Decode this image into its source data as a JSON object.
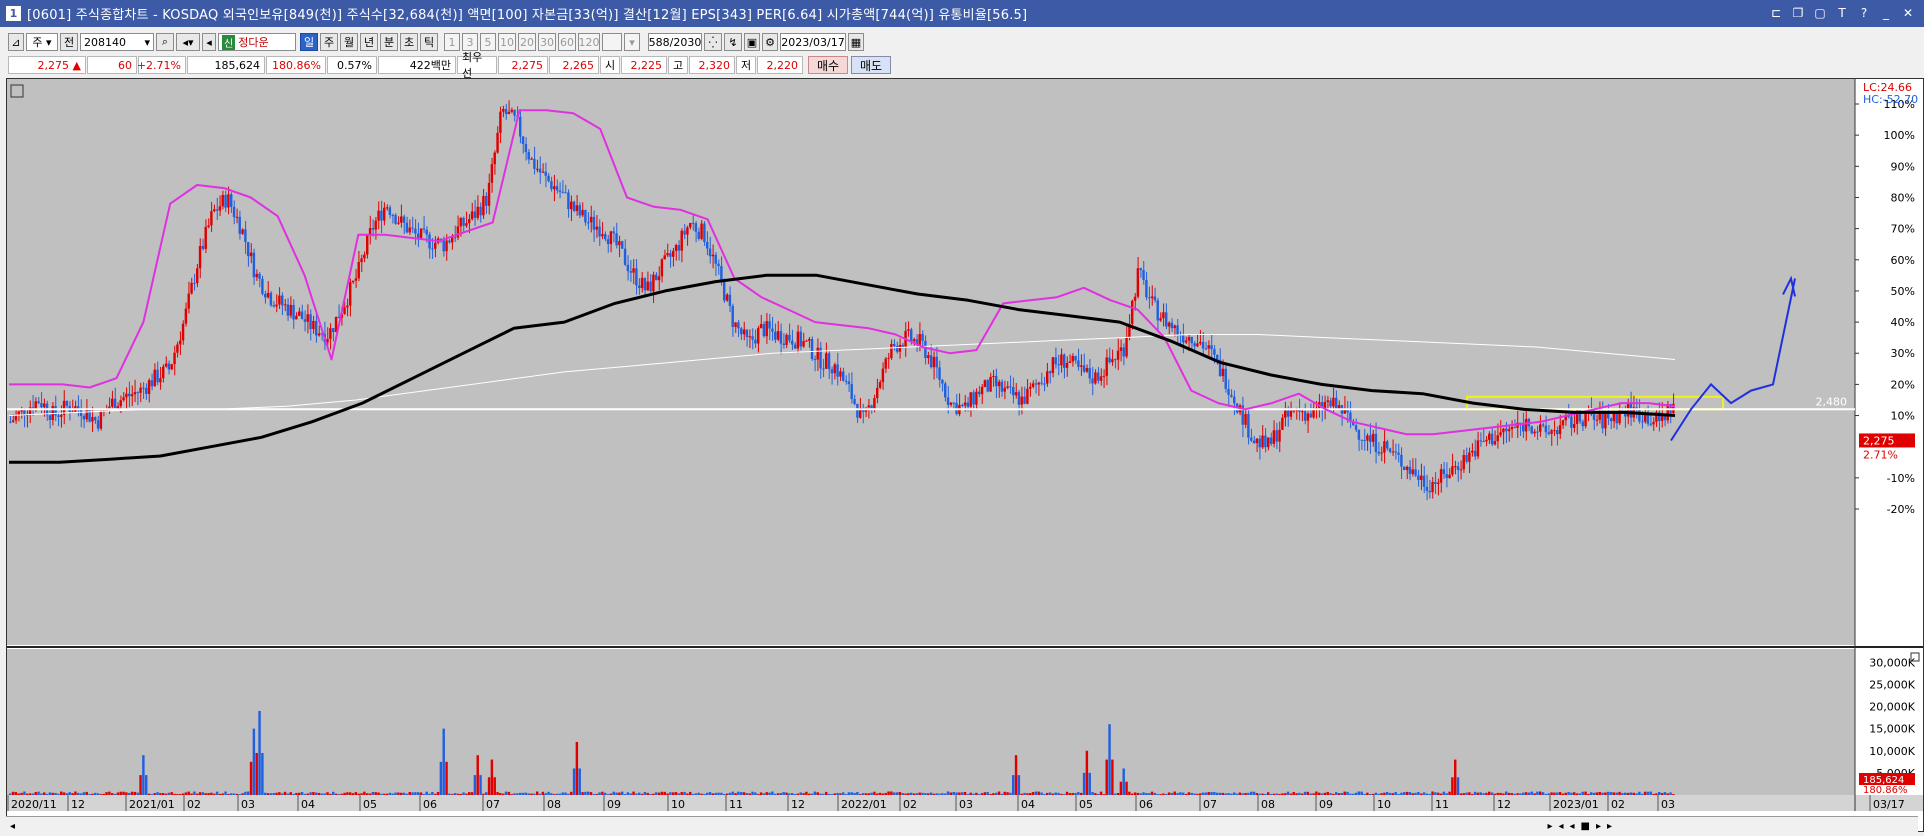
{
  "window": {
    "title": "[0601] 주식종합차트 - KOSDAQ 외국인보유[849(천)] 주식수[32,684(천)] 액면[100] 자본금[33(억)] 결산[12월] EPS[343] PER[6.64] 시가총액[744(억)] 유통비율[56.5]",
    "app_icon": "1"
  },
  "toolbar": {
    "market_label": "주",
    "period_label": "전",
    "code": "208140",
    "name_badge": "신",
    "name": "정다운",
    "periods": [
      "일",
      "주",
      "월",
      "년",
      "분",
      "초",
      "틱"
    ],
    "intervals": [
      "1",
      "3",
      "5",
      "10",
      "20",
      "30",
      "60",
      "120"
    ],
    "count": "588",
    "total": "/2030",
    "date": "2023/03/17"
  },
  "quote": {
    "price": "2,275 ▲",
    "change": "60",
    "change_pct": "+2.71%",
    "volume": "185,624",
    "volume_ratio": "180.86%",
    "turnover": "0.57%",
    "amount": "422백만",
    "best_bid_label": "최우선",
    "best_ask": "2,275",
    "best_bid": "2,265",
    "open_label": "시",
    "open": "2,225",
    "high_label": "고",
    "high": "2,320",
    "low_label": "저",
    "low": "2,220",
    "buy_label": "매수",
    "sell_label": "매도"
  },
  "chart_data": {
    "type": "candlestick",
    "price_axis_labels": [
      "110%",
      "100%",
      "90%",
      "80%",
      "70%",
      "60%",
      "50%",
      "40%",
      "30%",
      "20%",
      "10%",
      "-10%",
      "-20%"
    ],
    "price_axis_values": [
      110,
      100,
      90,
      80,
      70,
      60,
      50,
      40,
      30,
      20,
      10,
      -10,
      -20
    ],
    "legend_lc": "LC:24.66",
    "legend_hc": "HC:-52.70",
    "reference_line_label": "2,480",
    "current_price_label": "2,275",
    "current_pct_label": "2.71%",
    "volume_axis_labels": [
      "30,000K",
      "25,000K",
      "20,000K",
      "15,000K",
      "10,000K",
      "5,000K"
    ],
    "volume_axis_values": [
      30000,
      25000,
      20000,
      15000,
      10000,
      5000
    ],
    "current_volume_label": "185,624",
    "current_volume_pct": "180.86%",
    "x_labels": [
      "2020/11",
      "12",
      "2021/01",
      "02",
      "03",
      "04",
      "05",
      "06",
      "07",
      "08",
      "09",
      "10",
      "11",
      "12",
      "2022/01",
      "02",
      "03",
      "04",
      "05",
      "06",
      "07",
      "08",
      "09",
      "10",
      "11",
      "12",
      "2023/01",
      "02",
      "03",
      "03/17"
    ],
    "price_path_pct": [
      8,
      12,
      15,
      10,
      13,
      12,
      8,
      14,
      16,
      18,
      22,
      25,
      40,
      60,
      75,
      80,
      70,
      55,
      48,
      45,
      42,
      38,
      36,
      45,
      55,
      70,
      78,
      72,
      68,
      66,
      65,
      70,
      74,
      80,
      108,
      104,
      92,
      86,
      82,
      76,
      72,
      70,
      64,
      56,
      50,
      57,
      63,
      72,
      68,
      55,
      40,
      33,
      38,
      36,
      35,
      33,
      28,
      26,
      18,
      8,
      20,
      32,
      35,
      33,
      25,
      14,
      12,
      18,
      20,
      17,
      15,
      20,
      26,
      28,
      24,
      22,
      27,
      32,
      56,
      45,
      40,
      36,
      35,
      30,
      22,
      12,
      2,
      0,
      8,
      12,
      10,
      14,
      12,
      6,
      2,
      0,
      -4,
      -8,
      -12,
      -10,
      -6,
      -2,
      2,
      4,
      6,
      8,
      4,
      6,
      8,
      10,
      8,
      10,
      12,
      10,
      8,
      14
    ],
    "series": [
      {
        "name": "MA-pink",
        "color": "#e030e0"
      },
      {
        "name": "MA-black",
        "color": "#000000"
      },
      {
        "name": "MA-white",
        "color": "#ffffff"
      }
    ],
    "ma_pink_pct": [
      20,
      20,
      20,
      19,
      22,
      40,
      78,
      84,
      83,
      80,
      74,
      55,
      28,
      68,
      68,
      67,
      66,
      69,
      72,
      108,
      108,
      107,
      102,
      80,
      77,
      76,
      73,
      54,
      48,
      44,
      40,
      39,
      38,
      36,
      32,
      30,
      31,
      46,
      47,
      48,
      51,
      47,
      44,
      35,
      18,
      14,
      12,
      14,
      17,
      12,
      8,
      6,
      4,
      4,
      5,
      6,
      7,
      8,
      10,
      12,
      14,
      14,
      13
    ],
    "ma_black_pct": [
      -5,
      -5,
      -4,
      -3,
      0,
      3,
      8,
      14,
      22,
      30,
      38,
      40,
      46,
      50,
      53,
      55,
      55,
      52,
      49,
      47,
      44,
      42,
      40,
      34,
      27,
      23,
      20,
      18,
      17,
      14,
      12,
      11,
      11,
      10
    ],
    "ma_white_pct": [
      10,
      11,
      12,
      12,
      13,
      15,
      18,
      21,
      24,
      26,
      28,
      30,
      31,
      32,
      33,
      34,
      35,
      36,
      36,
      35,
      34,
      33,
      32,
      30,
      28
    ],
    "forecast_arrow_pct": [
      2,
      12,
      20,
      14,
      18,
      20,
      54
    ],
    "colors": {
      "up": "#e00000",
      "down": "#2060e0",
      "forecast": "#1e30e0",
      "highlight": "#f0f020",
      "background": "#c0c0c0"
    }
  },
  "statusbar": {
    "icons": [
      "scroll-left-icon",
      "play-icon",
      "rewind-icon",
      "stop-icon",
      "forward-icon"
    ]
  }
}
